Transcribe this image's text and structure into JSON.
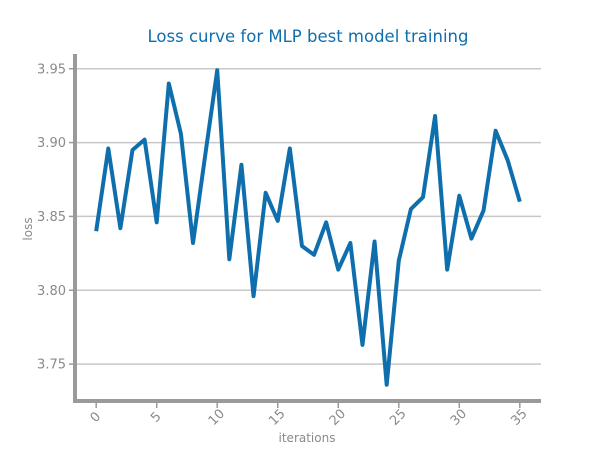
{
  "chart_data": {
    "type": "line",
    "title": "Loss curve for MLP best model training",
    "xlabel": "iterations",
    "ylabel": "loss",
    "xlim": [
      -1.75,
      36.75
    ],
    "ylim": [
      3.725,
      3.96
    ],
    "x_ticks": [
      0,
      5,
      10,
      15,
      20,
      25,
      30,
      35
    ],
    "y_ticks": [
      3.75,
      3.8,
      3.85,
      3.9,
      3.95
    ],
    "y_tick_labels": [
      "3.75",
      "3.80",
      "3.85",
      "3.90",
      "3.95"
    ],
    "grid": "horizontal",
    "series_color": "#0f6fad",
    "series": [
      {
        "x": [
          0,
          1,
          2,
          3,
          4,
          5,
          6,
          7,
          8,
          9,
          10,
          11,
          12,
          13,
          14,
          15,
          16,
          17,
          18,
          19,
          20,
          21,
          22,
          23,
          24,
          25,
          26,
          27,
          28,
          29,
          30,
          31,
          32,
          33,
          34,
          35
        ],
        "values": [
          3.84,
          3.896,
          3.842,
          3.895,
          3.902,
          3.846,
          3.94,
          3.906,
          3.832,
          3.891,
          3.949,
          3.821,
          3.885,
          3.796,
          3.866,
          3.847,
          3.896,
          3.83,
          3.824,
          3.846,
          3.814,
          3.832,
          3.763,
          3.833,
          3.736,
          3.82,
          3.855,
          3.863,
          3.918,
          3.814,
          3.864,
          3.835,
          3.854,
          3.908,
          3.888,
          3.86
        ]
      }
    ]
  }
}
